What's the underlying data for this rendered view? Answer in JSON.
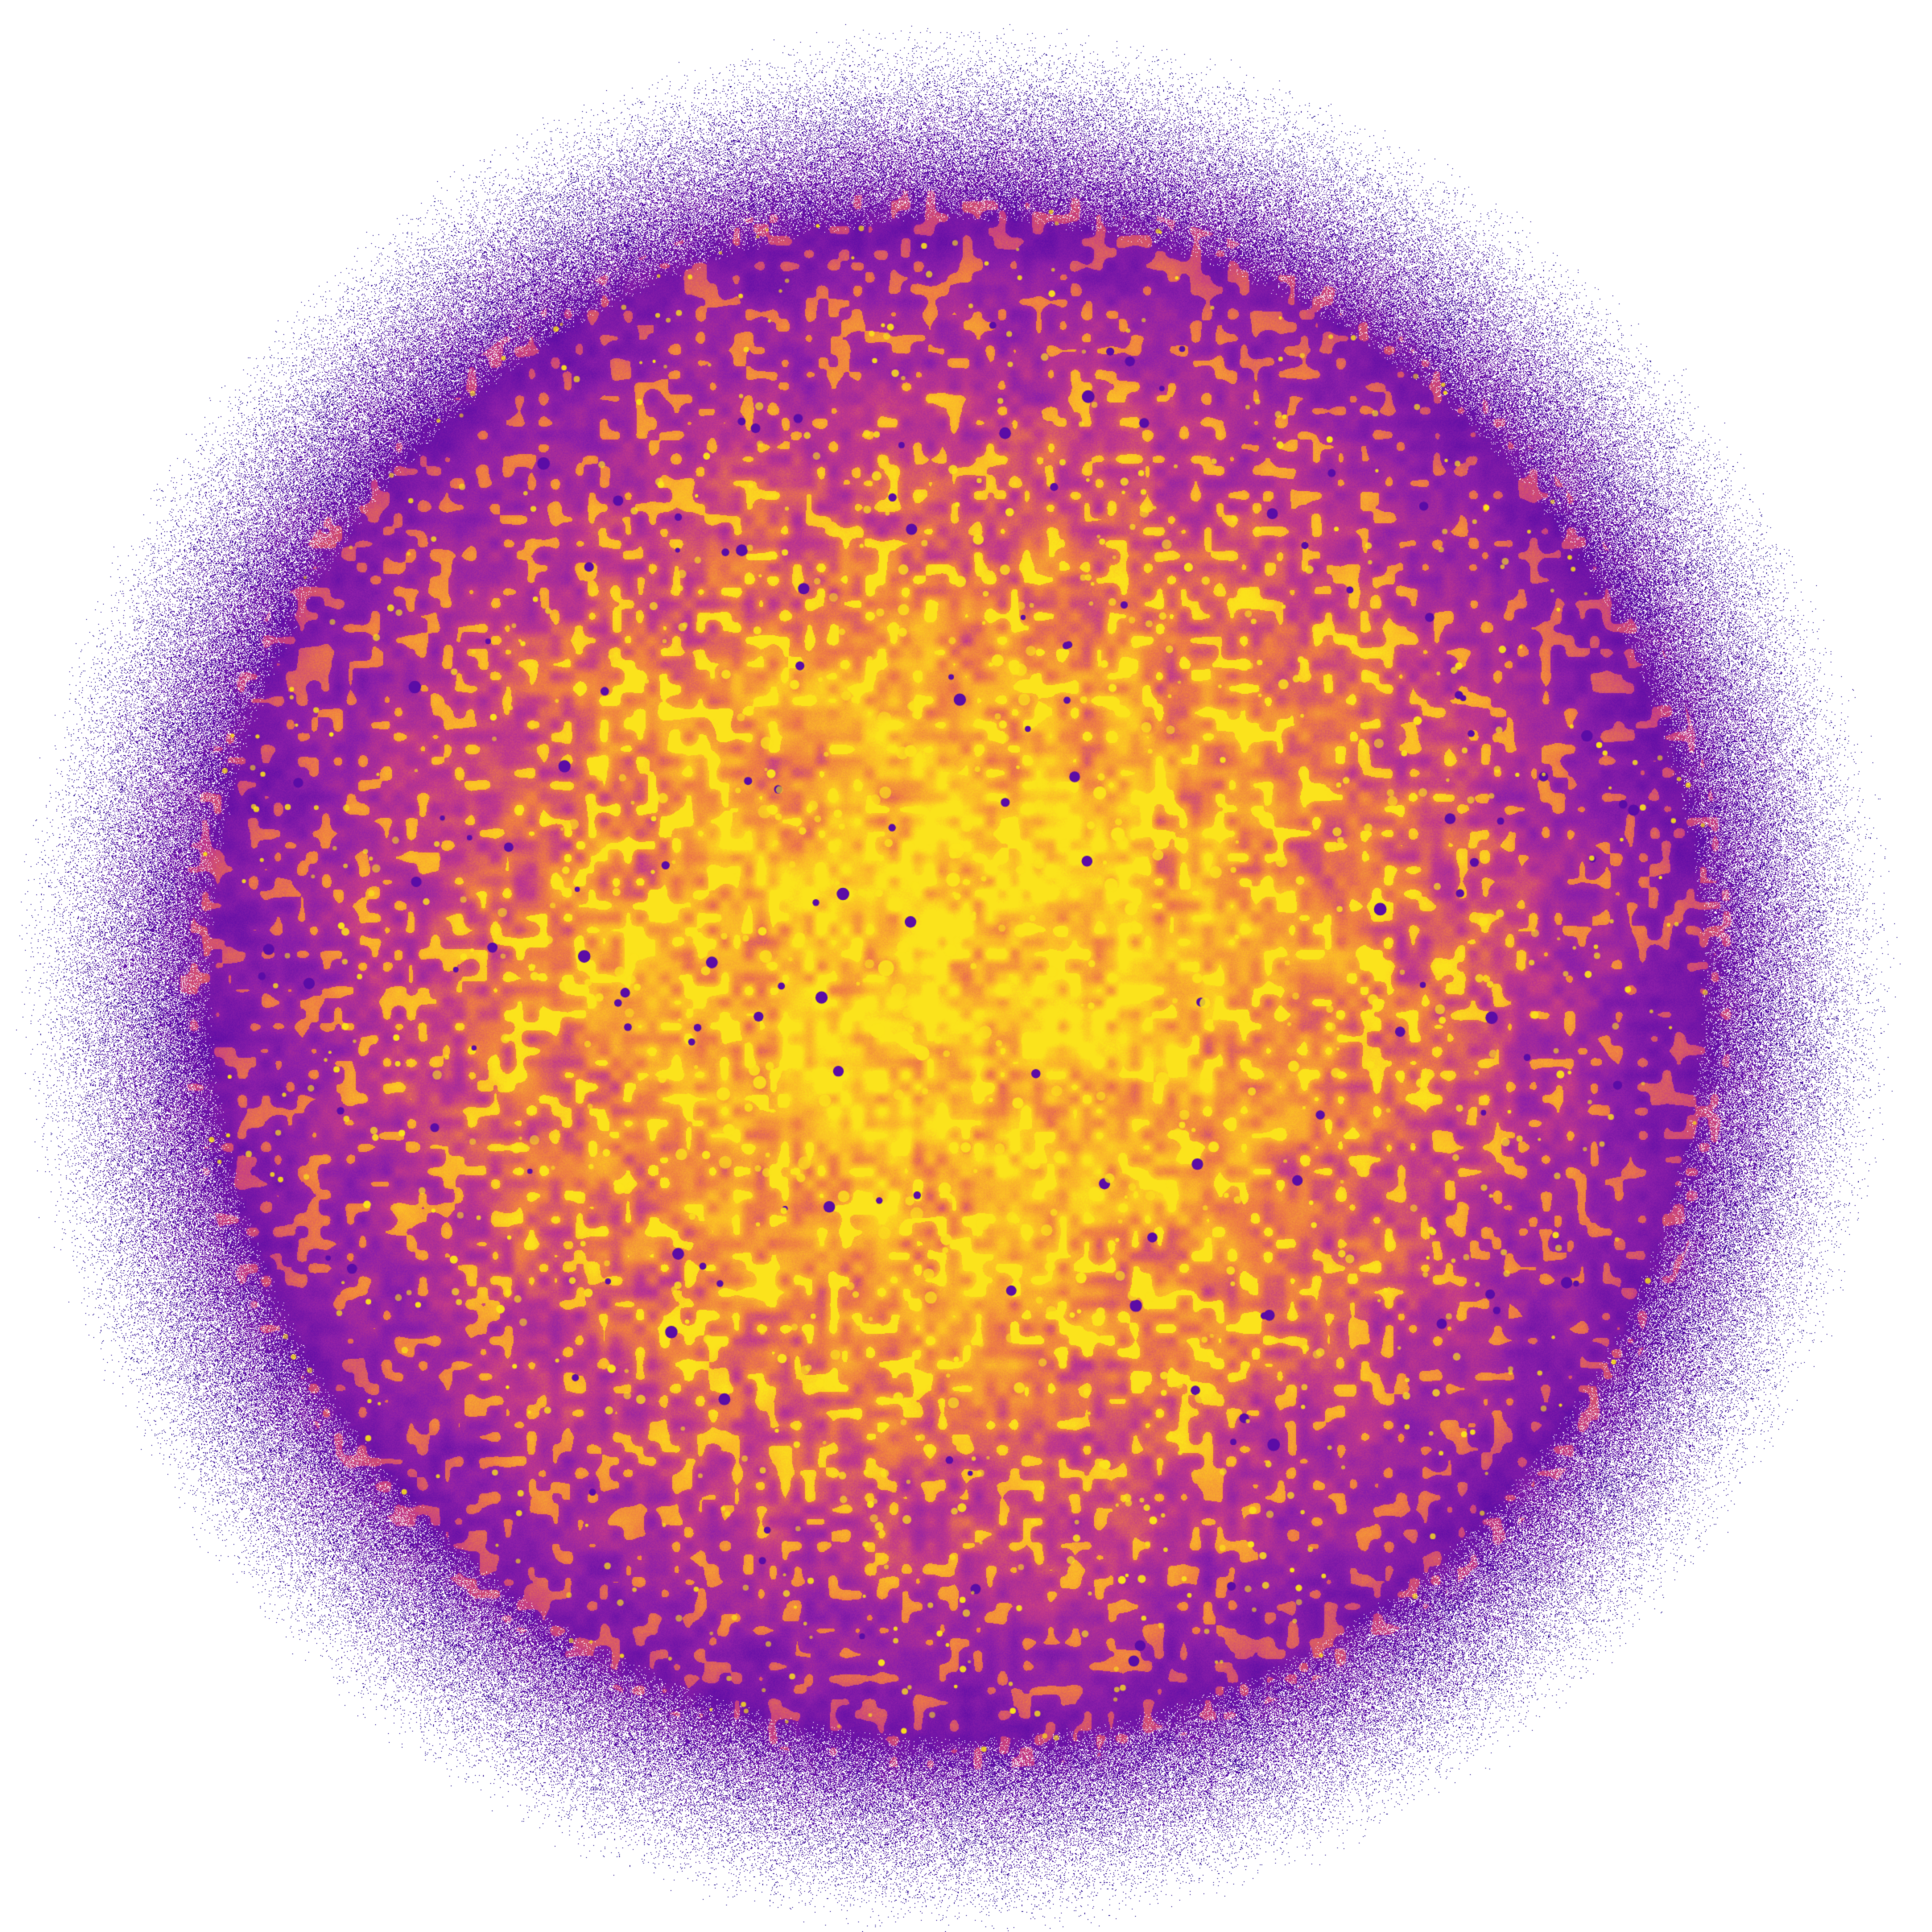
{
  "image": {
    "subject": "density-disc",
    "background_color": "#ffffff",
    "palette": {
      "edge": "#1a0a8c",
      "outer": "#5b0ca6",
      "mid_purple": "#8e20a8",
      "magenta": "#c2398a",
      "orange": "#ee7a45",
      "amber": "#fbb52a",
      "yellow": "#fbe31c"
    }
  }
}
